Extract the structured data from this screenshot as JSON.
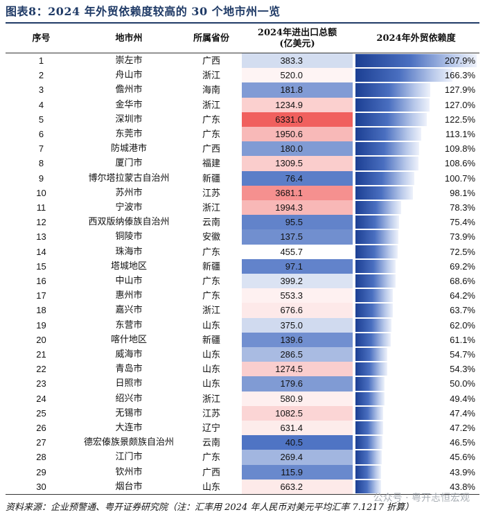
{
  "title": "图表8：2024 年外贸依赖度较高的 30 个地市州一览",
  "headers": {
    "seq": "序号",
    "city": "地市州",
    "province": "所属省份",
    "impex_line1": "2024年进出口总额",
    "impex_line2": "(亿美元)",
    "dependency": "2024年外贸依赖度"
  },
  "rows": [
    {
      "seq": "1",
      "city": "崇左市",
      "province": "广西",
      "impex": "383.3",
      "dependency": "207.9%"
    },
    {
      "seq": "2",
      "city": "舟山市",
      "province": "浙江",
      "impex": "520.0",
      "dependency": "166.3%"
    },
    {
      "seq": "3",
      "city": "儋州市",
      "province": "海南",
      "impex": "181.8",
      "dependency": "127.9%"
    },
    {
      "seq": "4",
      "city": "金华市",
      "province": "浙江",
      "impex": "1234.9",
      "dependency": "127.0%"
    },
    {
      "seq": "5",
      "city": "深圳市",
      "province": "广东",
      "impex": "6331.0",
      "dependency": "122.5%"
    },
    {
      "seq": "6",
      "city": "东莞市",
      "province": "广东",
      "impex": "1950.6",
      "dependency": "113.1%"
    },
    {
      "seq": "7",
      "city": "防城港市",
      "province": "广西",
      "impex": "180.0",
      "dependency": "109.8%"
    },
    {
      "seq": "8",
      "city": "厦门市",
      "province": "福建",
      "impex": "1309.5",
      "dependency": "108.6%"
    },
    {
      "seq": "9",
      "city": "博尔塔拉蒙古自治州",
      "province": "新疆",
      "impex": "76.4",
      "dependency": "100.7%"
    },
    {
      "seq": "10",
      "city": "苏州市",
      "province": "江苏",
      "impex": "3681.1",
      "dependency": "98.1%"
    },
    {
      "seq": "11",
      "city": "宁波市",
      "province": "浙江",
      "impex": "1994.3",
      "dependency": "78.3%"
    },
    {
      "seq": "12",
      "city": "西双版纳傣族自治州",
      "province": "云南",
      "impex": "95.5",
      "dependency": "75.4%"
    },
    {
      "seq": "13",
      "city": "铜陵市",
      "province": "安徽",
      "impex": "137.5",
      "dependency": "73.9%"
    },
    {
      "seq": "14",
      "city": "珠海市",
      "province": "广东",
      "impex": "455.7",
      "dependency": "72.5%"
    },
    {
      "seq": "15",
      "city": "塔城地区",
      "province": "新疆",
      "impex": "97.1",
      "dependency": "69.2%"
    },
    {
      "seq": "16",
      "city": "中山市",
      "province": "广东",
      "impex": "399.2",
      "dependency": "68.6%"
    },
    {
      "seq": "17",
      "city": "惠州市",
      "province": "广东",
      "impex": "553.3",
      "dependency": "64.2%"
    },
    {
      "seq": "18",
      "city": "嘉兴市",
      "province": "浙江",
      "impex": "676.6",
      "dependency": "63.7%"
    },
    {
      "seq": "19",
      "city": "东营市",
      "province": "山东",
      "impex": "375.0",
      "dependency": "62.0%"
    },
    {
      "seq": "20",
      "city": "喀什地区",
      "province": "新疆",
      "impex": "139.6",
      "dependency": "61.1%"
    },
    {
      "seq": "21",
      "city": "威海市",
      "province": "山东",
      "impex": "286.5",
      "dependency": "54.7%"
    },
    {
      "seq": "22",
      "city": "青岛市",
      "province": "山东",
      "impex": "1274.5",
      "dependency": "54.3%"
    },
    {
      "seq": "23",
      "city": "日照市",
      "province": "山东",
      "impex": "179.6",
      "dependency": "50.0%"
    },
    {
      "seq": "24",
      "city": "绍兴市",
      "province": "浙江",
      "impex": "580.9",
      "dependency": "49.4%"
    },
    {
      "seq": "25",
      "city": "无锡市",
      "province": "江苏",
      "impex": "1082.5",
      "dependency": "47.4%"
    },
    {
      "seq": "26",
      "city": "大连市",
      "province": "辽宁",
      "impex": "631.4",
      "dependency": "47.2%"
    },
    {
      "seq": "27",
      "city": "德宏傣族景颇族自治州",
      "province": "云南",
      "impex": "40.5",
      "dependency": "46.5%"
    },
    {
      "seq": "28",
      "city": "江门市",
      "province": "广东",
      "impex": "269.4",
      "dependency": "45.6%"
    },
    {
      "seq": "29",
      "city": "钦州市",
      "province": "广西",
      "impex": "115.9",
      "dependency": "43.9%"
    },
    {
      "seq": "30",
      "city": "烟台市",
      "province": "山东",
      "impex": "663.2",
      "dependency": "43.8%"
    }
  ],
  "footer": "资料来源：企业预警通、粤开证券研究院（注：汇率用 2024 年人民币对美元平均汇率 7.1217 折算）",
  "watermark": "公众号 · 粤开志恒宏观",
  "colors": {
    "title": "#1f3a66",
    "high_impex": "#f0605e",
    "low_impex": "#4f74c4",
    "bar_dark": "#1c3f93",
    "bar_light": "#eef2fb"
  }
}
